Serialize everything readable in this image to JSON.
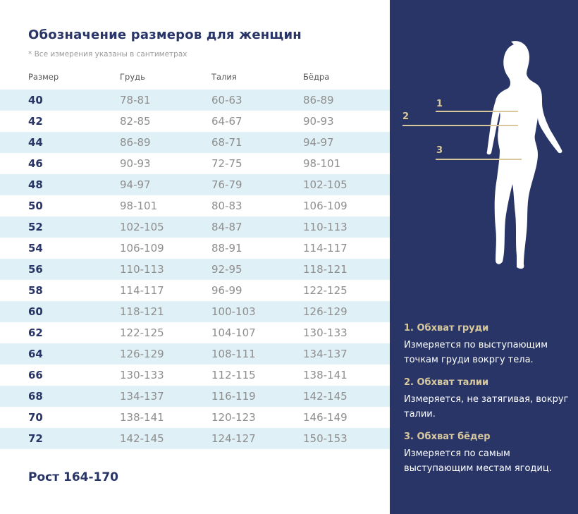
{
  "title": "Обозначение размеров для женщин",
  "subtitle": "* Все измерения указаны в сантиметрах",
  "headers": [
    "Размер",
    "Грудь",
    "Талия",
    "Бёдра"
  ],
  "rows": [
    [
      "40",
      "78-81",
      "60-63",
      "86-89"
    ],
    [
      "42",
      "82-85",
      "64-67",
      "90-93"
    ],
    [
      "44",
      "86-89",
      "68-71",
      "94-97"
    ],
    [
      "46",
      "90-93",
      "72-75",
      "98-101"
    ],
    [
      "48",
      "94-97",
      "76-79",
      "102-105"
    ],
    [
      "50",
      "98-101",
      "80-83",
      "106-109"
    ],
    [
      "52",
      "102-105",
      "84-87",
      "110-113"
    ],
    [
      "54",
      "106-109",
      "88-91",
      "114-117"
    ],
    [
      "56",
      "110-113",
      "92-95",
      "118-121"
    ],
    [
      "58",
      "114-117",
      "96-99",
      "122-125"
    ],
    [
      "60",
      "118-121",
      "100-103",
      "126-129"
    ],
    [
      "62",
      "122-125",
      "104-107",
      "130-133"
    ],
    [
      "64",
      "126-129",
      "108-111",
      "134-137"
    ],
    [
      "66",
      "130-133",
      "112-115",
      "138-141"
    ],
    [
      "68",
      "134-137",
      "116-119",
      "142-145"
    ],
    [
      "70",
      "138-141",
      "120-123",
      "146-149"
    ],
    [
      "72",
      "142-145",
      "124-127",
      "150-153"
    ]
  ],
  "footer": "Рост 164-170",
  "markers": [
    "1",
    "2",
    "3"
  ],
  "instructions": [
    {
      "title": "1. Обхват груди",
      "text": "Измеряется по  выступающим точкам груди вокргу тела."
    },
    {
      "title": "2. Обхват талии",
      "text": "Измеряется, не затягивая, вокруг талии."
    },
    {
      "title": "3. Обхват бёдер",
      "text": "Измеряется по самым выступающим местам ягодиц."
    }
  ],
  "colors": {
    "navy": "#283566",
    "gold": "#d9c89c",
    "row_alt": "#e0f0f7"
  }
}
